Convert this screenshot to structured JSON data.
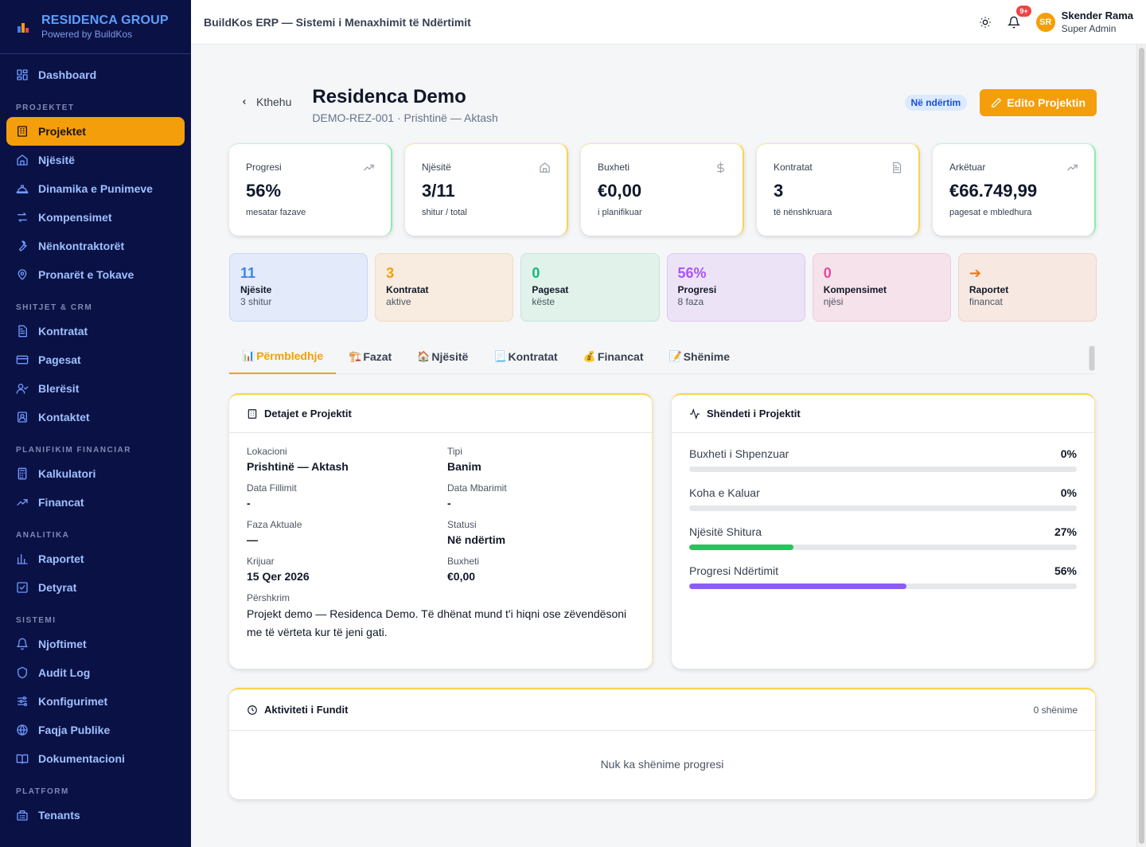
{
  "brand": {
    "name": "RESIDENCA GROUP",
    "tagline": "Powered by BuildKos"
  },
  "sidebar": {
    "top": [
      {
        "label": "Dashboard",
        "icon": "dashboard-icon"
      }
    ],
    "sections": [
      {
        "title": "PROJEKTET",
        "items": [
          {
            "label": "Projektet",
            "icon": "building-icon",
            "active": true
          },
          {
            "label": "Njësitë",
            "icon": "home-icon"
          },
          {
            "label": "Dinamika e Punimeve",
            "icon": "hardhat-icon"
          },
          {
            "label": "Kompensimet",
            "icon": "swap-icon"
          },
          {
            "label": "Nënkontraktorët",
            "icon": "wrench-icon"
          },
          {
            "label": "Pronarët e Tokave",
            "icon": "map-pin-icon"
          }
        ]
      },
      {
        "title": "SHITJET & CRM",
        "items": [
          {
            "label": "Kontratat",
            "icon": "document-icon"
          },
          {
            "label": "Pagesat",
            "icon": "credit-card-icon"
          },
          {
            "label": "Blerësit",
            "icon": "user-check-icon"
          },
          {
            "label": "Kontaktet",
            "icon": "contact-icon"
          }
        ]
      },
      {
        "title": "PLANIFIKIM FINANCIAR",
        "items": [
          {
            "label": "Kalkulatori",
            "icon": "calculator-icon"
          },
          {
            "label": "Financat",
            "icon": "trending-icon"
          }
        ]
      },
      {
        "title": "ANALITIKA",
        "items": [
          {
            "label": "Raportet",
            "icon": "bar-chart-icon"
          },
          {
            "label": "Detyrat",
            "icon": "checkbox-icon"
          }
        ]
      },
      {
        "title": "SISTEMI",
        "items": [
          {
            "label": "Njoftimet",
            "icon": "bell-icon"
          },
          {
            "label": "Audit Log",
            "icon": "shield-icon"
          },
          {
            "label": "Konfigurimet",
            "icon": "sliders-icon"
          },
          {
            "label": "Faqja Publike",
            "icon": "globe-icon"
          },
          {
            "label": "Dokumentacioni",
            "icon": "book-icon"
          }
        ]
      },
      {
        "title": "PLATFORM",
        "items": [
          {
            "label": "Tenants",
            "icon": "tenants-icon"
          }
        ]
      }
    ]
  },
  "header": {
    "title": "BuildKos ERP — Sistemi i Menaxhimit të Ndërtimit",
    "notifications_badge": "9+",
    "user": {
      "initials": "SR",
      "name": "Skender Rama",
      "role": "Super Admin"
    }
  },
  "page": {
    "back_label": "Kthehu",
    "title": "Residenca Demo",
    "subtitle": "DEMO-REZ-001 · Prishtinë — Aktash",
    "status": "Në ndërtim",
    "edit_label": "Edito Projektin"
  },
  "stats": [
    {
      "label": "Progresi",
      "value": "56%",
      "hint": "mesatar fazave",
      "icon": "trending-up-icon",
      "accent": "green"
    },
    {
      "label": "Njësitë",
      "value": "3/11",
      "hint": "shitur / total",
      "icon": "home-icon",
      "accent": "orange"
    },
    {
      "label": "Buxheti",
      "value": "€0,00",
      "hint": "i planifikuar",
      "icon": "dollar-icon",
      "accent": "orange"
    },
    {
      "label": "Kontratat",
      "value": "3",
      "hint": "të nënshkruara",
      "icon": "document-icon",
      "accent": "orange"
    },
    {
      "label": "Arkëtuar",
      "value": "€66.749,99",
      "hint": "pagesat e mbledhura",
      "icon": "trending-up-icon",
      "accent": "green"
    }
  ],
  "tiles": [
    {
      "value": "11",
      "label": "Njësite",
      "sub": "3 shitur",
      "color": "#3b82f6",
      "bg": "#e3ebfb",
      "border": "#c7d7f7"
    },
    {
      "value": "3",
      "label": "Kontratat",
      "sub": "aktive",
      "color": "#f59e0b",
      "bg": "#f7ecdf",
      "border": "#efdcc3"
    },
    {
      "value": "0",
      "label": "Pagesat",
      "sub": "këste",
      "color": "#10b981",
      "bg": "#e0f2ea",
      "border": "#c5e6d6"
    },
    {
      "value": "56%",
      "label": "Progresi",
      "sub": "8 faza",
      "color": "#a855f7",
      "bg": "#ede3f7",
      "border": "#dcc8f0"
    },
    {
      "value": "0",
      "label": "Kompensimet",
      "sub": "njësi",
      "color": "#ec4899",
      "bg": "#f6e2ea",
      "border": "#efcbd8"
    },
    {
      "value": "➔",
      "label": "Raportet",
      "sub": "financat",
      "color": "#f97316",
      "bg": "#f7e8e2",
      "border": "#efd4c8"
    }
  ],
  "tabs": [
    {
      "emoji": "📊",
      "label": "Përmbledhje",
      "active": true
    },
    {
      "emoji": "🏗️",
      "label": "Fazat"
    },
    {
      "emoji": "🏠",
      "label": "Njësitë"
    },
    {
      "emoji": "📃",
      "label": "Kontratat"
    },
    {
      "emoji": "💰",
      "label": "Financat"
    },
    {
      "emoji": "📝",
      "label": "Shënime"
    }
  ],
  "details": {
    "title": "Detajet e Projektit",
    "fields": [
      {
        "label": "Lokacioni",
        "value": "Prishtinë — Aktash"
      },
      {
        "label": "Tipi",
        "value": "Banim"
      },
      {
        "label": "Data Fillimit",
        "value": "-"
      },
      {
        "label": "Data Mbarimit",
        "value": "-"
      },
      {
        "label": "Faza Aktuale",
        "value": "—"
      },
      {
        "label": "Statusi",
        "value": "Në ndërtim"
      },
      {
        "label": "Krijuar",
        "value": "15 Qer 2026"
      },
      {
        "label": "Buxheti",
        "value": "€0,00"
      }
    ],
    "description_label": "Përshkrim",
    "description": "Projekt demo — Residenca Demo. Të dhënat mund t'i hiqni ose zëvendësoni me të vërteta kur të jeni gati."
  },
  "health": {
    "title": "Shëndeti i Projektit",
    "rows": [
      {
        "label": "Buxheti i Shpenzuar",
        "percent": 0,
        "percent_label": "0%",
        "color": "#9ca3af"
      },
      {
        "label": "Koha e Kaluar",
        "percent": 0,
        "percent_label": "0%",
        "color": "#9ca3af"
      },
      {
        "label": "Njësitë Shitura",
        "percent": 27,
        "percent_label": "27%",
        "color": "#22c55e"
      },
      {
        "label": "Progresi Ndërtimit",
        "percent": 56,
        "percent_label": "56%",
        "color": "#8b5cf6"
      }
    ]
  },
  "activity": {
    "title": "Aktiviteti i Fundit",
    "count": "0 shënime",
    "empty": "Nuk ka shënime progresi"
  }
}
